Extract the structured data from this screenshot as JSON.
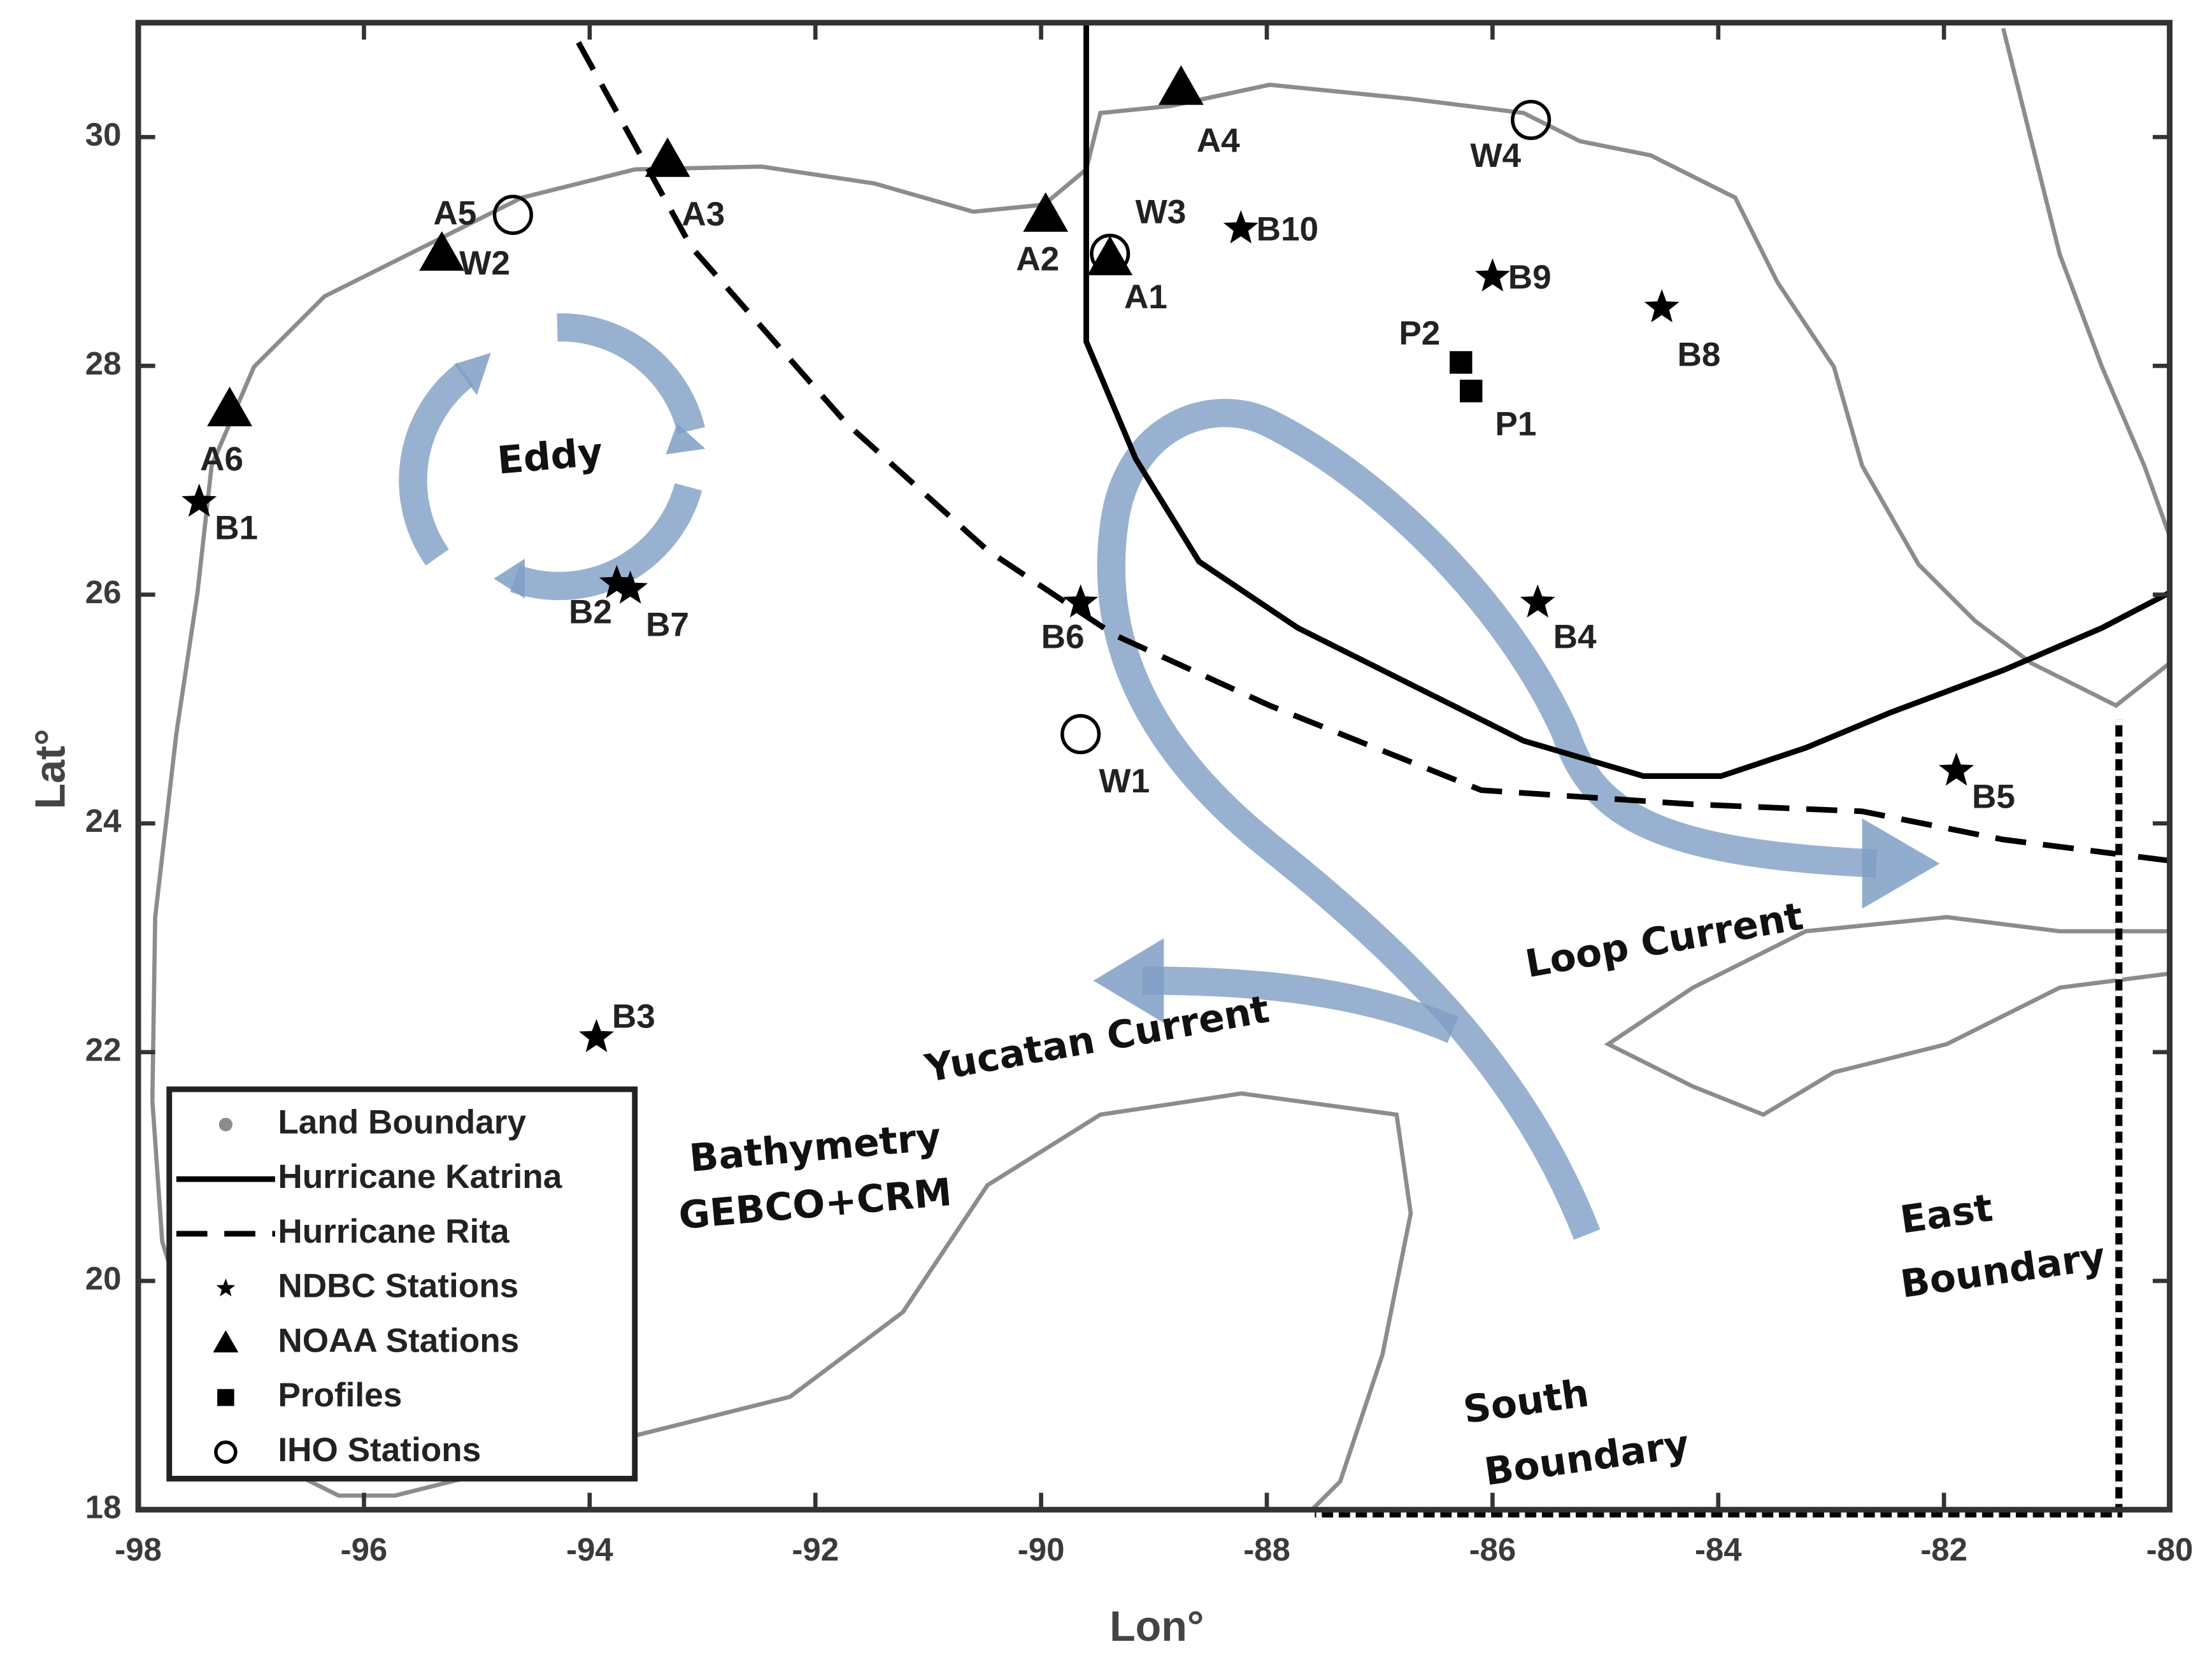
{
  "axes": {
    "xlabel": "Lon°",
    "ylabel": "Lat°",
    "xlim": [
      -98,
      -80
    ],
    "ylim": [
      18,
      31
    ],
    "xticks": [
      -98,
      -96,
      -94,
      -92,
      -90,
      -88,
      -86,
      -84,
      -82,
      -80
    ],
    "yticks": [
      18,
      20,
      22,
      24,
      26,
      28,
      30
    ]
  },
  "stations": [
    {
      "label": "A1",
      "symbol": "triangle",
      "lon": -89.39,
      "lat": 28.94
    },
    {
      "label": "A2",
      "symbol": "triangle",
      "lon": -89.96,
      "lat": 29.32
    },
    {
      "label": "A3",
      "symbol": "triangle",
      "lon": -93.31,
      "lat": 29.8
    },
    {
      "label": "A4",
      "symbol": "triangle",
      "lon": -88.76,
      "lat": 30.43
    },
    {
      "label": "A5",
      "symbol": "triangle",
      "lon": -95.31,
      "lat": 28.98
    },
    {
      "label": "A6",
      "symbol": "triangle",
      "lon": -97.19,
      "lat": 27.62
    },
    {
      "label": "B1",
      "symbol": "star",
      "lon": -97.46,
      "lat": 26.81
    },
    {
      "label": "B2",
      "symbol": "star",
      "lon": -93.76,
      "lat": 26.1
    },
    {
      "label": "B3",
      "symbol": "star",
      "lon": -93.94,
      "lat": 22.13
    },
    {
      "label": "B4",
      "symbol": "star",
      "lon": -85.6,
      "lat": 25.93
    },
    {
      "label": "B5",
      "symbol": "star",
      "lon": -81.89,
      "lat": 24.46
    },
    {
      "label": "B6",
      "symbol": "star",
      "lon": -89.65,
      "lat": 25.93
    },
    {
      "label": "B7",
      "symbol": "star",
      "lon": -93.64,
      "lat": 26.05
    },
    {
      "label": "B8",
      "symbol": "star",
      "lon": -84.5,
      "lat": 28.51
    },
    {
      "label": "B9",
      "symbol": "star",
      "lon": -86.0,
      "lat": 28.78
    },
    {
      "label": "B10",
      "symbol": "star",
      "lon": -88.23,
      "lat": 29.2
    },
    {
      "label": "W1",
      "symbol": "circle",
      "lon": -89.65,
      "lat": 24.78
    },
    {
      "label": "W2",
      "symbol": "circle",
      "lon": -94.68,
      "lat": 29.32
    },
    {
      "label": "W3",
      "symbol": "circle",
      "lon": -89.39,
      "lat": 28.98
    },
    {
      "label": "W4",
      "symbol": "circle",
      "lon": -85.66,
      "lat": 30.15
    },
    {
      "label": "P1",
      "symbol": "square",
      "lon": -86.19,
      "lat": 27.78
    },
    {
      "label": "P2",
      "symbol": "square",
      "lon": -86.28,
      "lat": 28.03
    }
  ],
  "legend": [
    {
      "label": "Land Boundary",
      "symbol": "dot"
    },
    {
      "label": "Hurricane Katrina",
      "symbol": "line"
    },
    {
      "label": "Hurricane Rita",
      "symbol": "dash"
    },
    {
      "label": "NDBC Stations",
      "symbol": "star"
    },
    {
      "label": "NOAA Stations",
      "symbol": "triangle"
    },
    {
      "label": "Profiles",
      "symbol": "square"
    },
    {
      "label": "IHO Stations",
      "symbol": "circle"
    }
  ],
  "annotations": [
    "Eddy",
    "Loop Current",
    "Yucatan Current",
    "Bathymetry",
    "GEBCO+CRM",
    "East",
    "Boundary",
    "South",
    "Boundary"
  ]
}
